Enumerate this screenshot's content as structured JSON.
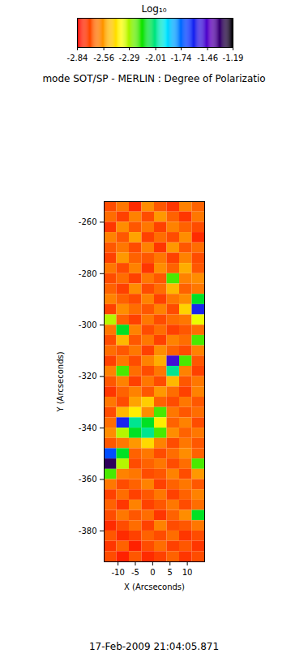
{
  "chart_data": {
    "type": "heatmap",
    "title": "mode SOT/SP - MERLIN : Degree of Polarizatio",
    "caption": "17-Feb-2009 21:04:05.871",
    "x_label": "X (Arcseconds)",
    "y_label": "Y (Arcseconds)",
    "xlim": [
      -14,
      15
    ],
    "ylim": [
      -392,
      -252
    ],
    "xticks": [
      -10,
      -5,
      0,
      5,
      10
    ],
    "yticks": [
      -260,
      -280,
      -300,
      -320,
      -340,
      -360,
      -380
    ],
    "x_edges": [
      -14,
      -10.375,
      -6.75,
      -3.125,
      0.5,
      4.125,
      7.75,
      11.375,
      15
    ],
    "y_edges": [
      -252,
      -256,
      -260,
      -264,
      -268,
      -272,
      -276,
      -280,
      -284,
      -288,
      -292,
      -296,
      -300,
      -304,
      -308,
      -312,
      -316,
      -320,
      -324,
      -328,
      -332,
      -336,
      -340,
      -344,
      -348,
      -352,
      -356,
      -360,
      -364,
      -368,
      -372,
      -376,
      -380,
      -384,
      -388,
      -392
    ],
    "cells": [
      [
        -2.7,
        -2.62,
        -2.76,
        -2.58,
        -2.68,
        -2.74,
        -2.6,
        -2.66
      ],
      [
        -2.64,
        -2.72,
        -2.6,
        -2.7,
        -2.56,
        -2.66,
        -2.74,
        -2.62
      ],
      [
        -2.74,
        -2.58,
        -2.68,
        -2.62,
        -2.72,
        -2.6,
        -2.66,
        -2.7
      ],
      [
        -2.6,
        -2.68,
        -2.54,
        -2.72,
        -2.64,
        -2.7,
        -2.58,
        -2.76
      ],
      [
        -2.68,
        -2.62,
        -2.7,
        -2.6,
        -2.74,
        -2.56,
        -2.68,
        -2.64
      ],
      [
        -2.72,
        -2.56,
        -2.66,
        -2.68,
        -2.62,
        -2.72,
        -2.6,
        -2.7
      ],
      [
        -2.62,
        -2.7,
        -2.6,
        -2.74,
        -2.58,
        -2.66,
        -2.52,
        -2.68
      ],
      [
        -2.7,
        -2.64,
        -2.72,
        -2.62,
        -2.68,
        -2.2,
        -2.6,
        -2.58
      ],
      [
        -2.66,
        -2.72,
        -2.58,
        -2.7,
        -2.64,
        -2.5,
        -2.66,
        -2.62
      ],
      [
        -2.6,
        -2.66,
        -2.7,
        -2.6,
        -2.72,
        -2.62,
        -2.58,
        -2.1
      ],
      [
        -2.72,
        -2.58,
        -2.64,
        -2.68,
        -2.6,
        -2.7,
        -2.45,
        -1.6
      ],
      [
        -2.3,
        -2.66,
        -2.72,
        -2.62,
        -2.7,
        -2.64,
        -2.62,
        -2.35
      ],
      [
        -2.62,
        -2.1,
        -2.6,
        -2.7,
        -2.64,
        -2.72,
        -2.68,
        -2.64
      ],
      [
        -2.7,
        -2.5,
        -2.68,
        -2.62,
        -2.72,
        -2.6,
        -2.64,
        -2.2
      ],
      [
        -2.64,
        -2.68,
        -2.62,
        -2.72,
        -2.58,
        -2.66,
        -2.7,
        -2.6
      ],
      [
        -2.72,
        -2.62,
        -2.7,
        -2.6,
        -2.52,
        -1.5,
        -2.2,
        -2.68
      ],
      [
        -2.6,
        -2.2,
        -2.64,
        -2.7,
        -2.62,
        -2.0,
        -2.6,
        -2.72
      ],
      [
        -2.68,
        -2.6,
        -2.72,
        -2.62,
        -2.7,
        -2.5,
        -2.68,
        -2.62
      ],
      [
        -2.74,
        -2.66,
        -2.6,
        -2.68,
        -2.56,
        -2.64,
        -2.72,
        -2.6
      ],
      [
        -2.62,
        -2.7,
        -2.54,
        -2.46,
        -2.66,
        -2.7,
        -2.62,
        -2.68
      ],
      [
        -2.7,
        -2.5,
        -2.4,
        -2.58,
        -2.2,
        -2.62,
        -2.68,
        -2.64
      ],
      [
        -2.64,
        -1.6,
        -2.0,
        -2.1,
        -2.4,
        -2.66,
        -2.6,
        -2.7
      ],
      [
        -2.58,
        -2.3,
        -2.1,
        -2.0,
        -2.2,
        -2.58,
        -2.66,
        -2.62
      ],
      [
        -2.68,
        -2.62,
        -2.56,
        -2.44,
        -2.6,
        -2.7,
        -2.62,
        -2.68
      ],
      [
        -1.7,
        -2.1,
        -2.66,
        -2.62,
        -2.7,
        -2.64,
        -2.58,
        -2.66
      ],
      [
        -1.3,
        -2.3,
        -2.7,
        -2.66,
        -2.62,
        -2.7,
        -2.64,
        -2.2
      ],
      [
        -2.2,
        -2.6,
        -2.62,
        -2.7,
        -2.68,
        -2.6,
        -2.7,
        -2.56
      ],
      [
        -2.62,
        -2.7,
        -2.66,
        -2.6,
        -2.72,
        -2.66,
        -2.62,
        -2.68
      ],
      [
        -2.72,
        -2.64,
        -2.72,
        -2.68,
        -2.62,
        -2.72,
        -2.66,
        -2.6
      ],
      [
        -2.66,
        -2.74,
        -2.6,
        -2.72,
        -2.68,
        -2.62,
        -2.7,
        -2.64
      ],
      [
        -2.7,
        -2.62,
        -2.68,
        -2.64,
        -2.74,
        -2.66,
        -2.58,
        -2.1
      ],
      [
        -2.76,
        -2.7,
        -2.64,
        -2.72,
        -2.6,
        -2.7,
        -2.68,
        -2.62
      ],
      [
        -2.68,
        -2.76,
        -2.72,
        -2.66,
        -2.7,
        -2.64,
        -2.74,
        -2.7
      ],
      [
        -2.74,
        -2.66,
        -2.78,
        -2.7,
        -2.64,
        -2.72,
        -2.68,
        -2.74
      ],
      [
        -2.7,
        -2.78,
        -2.68,
        -2.76,
        -2.72,
        -2.66,
        -2.74,
        -2.7
      ]
    ],
    "colorbar": {
      "label": "Log₁₀",
      "range": [
        -2.84,
        -1.19
      ],
      "ticks": [
        -2.84,
        -2.56,
        -2.29,
        -2.01,
        -1.74,
        -1.46,
        -1.19
      ]
    }
  }
}
